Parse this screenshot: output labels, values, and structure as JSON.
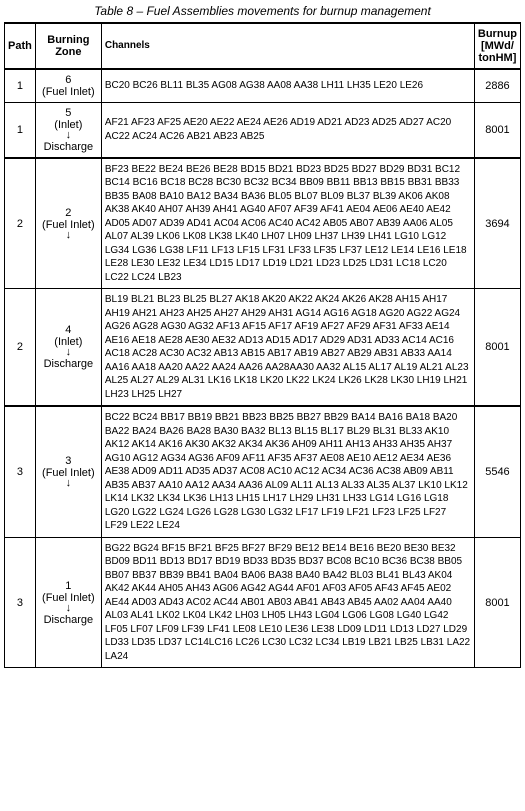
{
  "caption": "Table 8 – Fuel Assemblies movements for burnup management",
  "headers": {
    "path": "Path",
    "zone": "Burning Zone",
    "channels": "Channels",
    "burnup": "Burnup [MWd/ tonHM]"
  },
  "zone_labels": {
    "inlet": "(Fuel Inlet)",
    "inlet_only": "(Inlet)",
    "discharge": "Discharge"
  },
  "rows": [
    {
      "path": "1",
      "zone_num": "6",
      "zone_type": "inlet",
      "channels": "BC20 BC26 BL11 BL35 AG08 AG38 AA08 AA38 LH11 LH35 LE20 LE26",
      "burnup": "2886"
    },
    {
      "path": "1",
      "zone_num": "5",
      "zone_type": "inlet_to_discharge",
      "channels": "AF21 AF23 AF25 AE20 AE22 AE24 AE26 AD19 AD21 AD23 AD25 AD27 AC20 AC22 AC24 AC26 AB21 AB23 AB25",
      "burnup": "8001"
    },
    {
      "path": "2",
      "zone_num": "2",
      "zone_type": "inlet_arrow",
      "channels": "BF23 BE22 BE24 BE26 BE28 BD15 BD21 BD23 BD25 BD27 BD29 BD31 BC12 BC14 BC16 BC18 BC28 BC30 BC32 BC34 BB09 BB11 BB13 BB15 BB31 BB33 BB35 BA08 BA10 BA12 BA34 BA36 BL05 BL07 BL09 BL37 BL39 AK06 AK08 AK38 AK40 AH07 AH39 AH41 AG40 AF07 AF39 AF41 AE04 AE06 AE40 AE42 AD05 AD07 AD39 AD41 AC04 AC06 AC40 AC42 AB05 AB07 AB39 AA06 AL05 AL07 AL39 LK06 LK08 LK38 LK40 LH07 LH09 LH37 LH39 LH41 LG10 LG12 LG34 LG36 LG38 LF11 LF13 LF15 LF31 LF33 LF35 LF37 LE12 LE14 LE16 LE18 LE28 LE30 LE32 LE34 LD15 LD17 LD19 LD21 LD23 LD25 LD31 LC18 LC20 LC22 LC24 LB23",
      "burnup": "3694"
    },
    {
      "path": "2",
      "zone_num": "4",
      "zone_type": "inlet_to_discharge",
      "channels": "BL19 BL21 BL23 BL25 BL27 AK18 AK20 AK22 AK24 AK26 AK28 AH15 AH17 AH19 AH21 AH23 AH25 AH27 AH29 AH31 AG14 AG16 AG18 AG20 AG22 AG24 AG26 AG28 AG30 AG32 AF13 AF15 AF17 AF19 AF27 AF29 AF31 AF33 AE14 AE16 AE18 AE28 AE30 AE32 AD13 AD15 AD17 AD29 AD31 AD33 AC14 AC16 AC18 AC28 AC30 AC32 AB13 AB15 AB17 AB19 AB27 AB29 AB31 AB33 AA14 AA16 AA18 AA20 AA22 AA24 AA26 AA28AA30 AA32 AL15 AL17 AL19 AL21 AL23 AL25 AL27 AL29 AL31 LK16 LK18 LK20 LK22 LK24 LK26 LK28 LK30 LH19 LH21 LH23 LH25 LH27",
      "burnup": "8001"
    },
    {
      "path": "3",
      "zone_num": "3",
      "zone_type": "inlet_arrow",
      "channels": "BC22 BC24 BB17 BB19 BB21 BB23 BB25 BB27 BB29 BA14 BA16 BA18 BA20 BA22 BA24 BA26 BA28 BA30 BA32 BL13 BL15 BL17 BL29 BL31 BL33 AK10 AK12 AK14 AK16 AK30 AK32 AK34 AK36 AH09 AH11 AH13 AH33 AH35 AH37 AG10 AG12 AG34 AG36 AF09 AF11 AF35 AF37 AE08 AE10 AE12 AE34 AE36 AE38 AD09 AD11 AD35 AD37 AC08 AC10 AC12 AC34 AC36 AC38 AB09 AB11 AB35 AB37 AA10 AA12 AA34 AA36 AL09 AL11 AL13 AL33 AL35 AL37 LK10 LK12 LK14 LK32 LK34 LK36 LH13 LH15 LH17 LH29 LH31 LH33 LG14 LG16 LG18 LG20 LG22 LG24 LG26 LG28 LG30 LG32 LF17 LF19 LF21 LF23 LF25 LF27 LF29 LE22 LE24",
      "burnup": "5546"
    },
    {
      "path": "3",
      "zone_num": "1",
      "zone_type": "inlet_to_discharge_fuel",
      "channels": "BG22 BG24 BF15 BF21 BF25 BF27 BF29 BE12 BE14 BE16 BE20 BE30 BE32 BD09 BD11 BD13 BD17 BD19 BD33 BD35 BD37 BC08 BC10 BC36 BC38 BB05 BB07 BB37 BB39 BB41 BA04 BA06 BA38 BA40 BA42 BL03 BL41 BL43 AK04 AK42 AK44 AH05 AH43 AG06 AG42 AG44 AF01 AF03 AF05 AF43 AF45 AE02 AE44 AD03 AD43 AC02 AC44 AB01 AB03 AB41 AB43 AB45 AA02 AA04 AA40 AL03 AL41 LK02 LK04 LK42 LH03 LH05 LH43 LG04 LG06 LG08 LG40 LG42 LF05 LF07 LF09 LF39 LF41 LE08 LE10 LE36 LE38 LD09 LD11 LD13 LD27 LD29 LD33 LD35 LD37 LC14LC16 LC26 LC30 LC32 LC34 LB19 LB21 LB25 LB31 LA22 LA24",
      "burnup": "8001"
    }
  ],
  "style": {
    "text_color": "#000000",
    "bg_color": "#ffffff",
    "caption_fontsize": 12,
    "cell_fontsize": 11,
    "channels_fontsize": 10
  }
}
